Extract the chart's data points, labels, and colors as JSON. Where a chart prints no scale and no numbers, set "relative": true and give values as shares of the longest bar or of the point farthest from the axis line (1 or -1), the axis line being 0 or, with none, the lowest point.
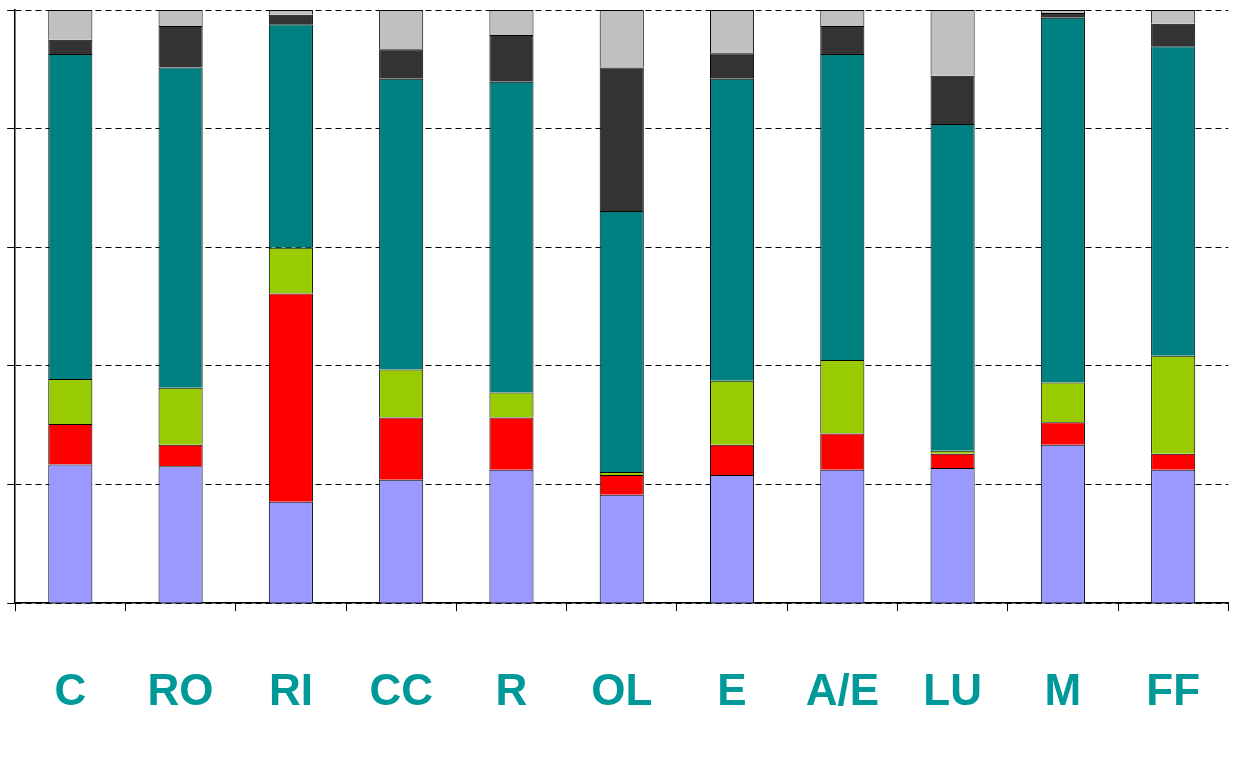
{
  "chart_data": {
    "type": "bar",
    "stacked": true,
    "relative": true,
    "grid": "y",
    "legend": false,
    "categories": [
      "C",
      "RO",
      "RI",
      "CC",
      "R",
      "OL",
      "E",
      "A/E",
      "LU",
      "M",
      "FF"
    ],
    "series": [
      {
        "color": "#9999ff",
        "values": [
          0.234,
          0.231,
          0.171,
          0.208,
          0.225,
          0.183,
          0.216,
          0.225,
          0.228,
          0.267,
          0.225
        ]
      },
      {
        "color": "#ff0000",
        "values": [
          0.068,
          0.036,
          0.351,
          0.105,
          0.088,
          0.033,
          0.051,
          0.061,
          0.024,
          0.038,
          0.027
        ]
      },
      {
        "color": "#99cc00",
        "values": [
          0.076,
          0.096,
          0.077,
          0.081,
          0.042,
          0.005,
          0.108,
          0.124,
          0.005,
          0.067,
          0.165
        ]
      },
      {
        "color": "#008080",
        "values": [
          0.548,
          0.54,
          0.377,
          0.49,
          0.524,
          0.44,
          0.509,
          0.516,
          0.551,
          0.615,
          0.522
        ]
      },
      {
        "color": "#333333",
        "values": [
          0.024,
          0.07,
          0.016,
          0.05,
          0.079,
          0.242,
          0.043,
          0.047,
          0.081,
          0.008,
          0.038
        ]
      },
      {
        "color": "#c0c0c0",
        "values": [
          0.05,
          0.027,
          0.008,
          0.066,
          0.042,
          0.097,
          0.073,
          0.027,
          0.111,
          0.005,
          0.023
        ]
      }
    ]
  }
}
